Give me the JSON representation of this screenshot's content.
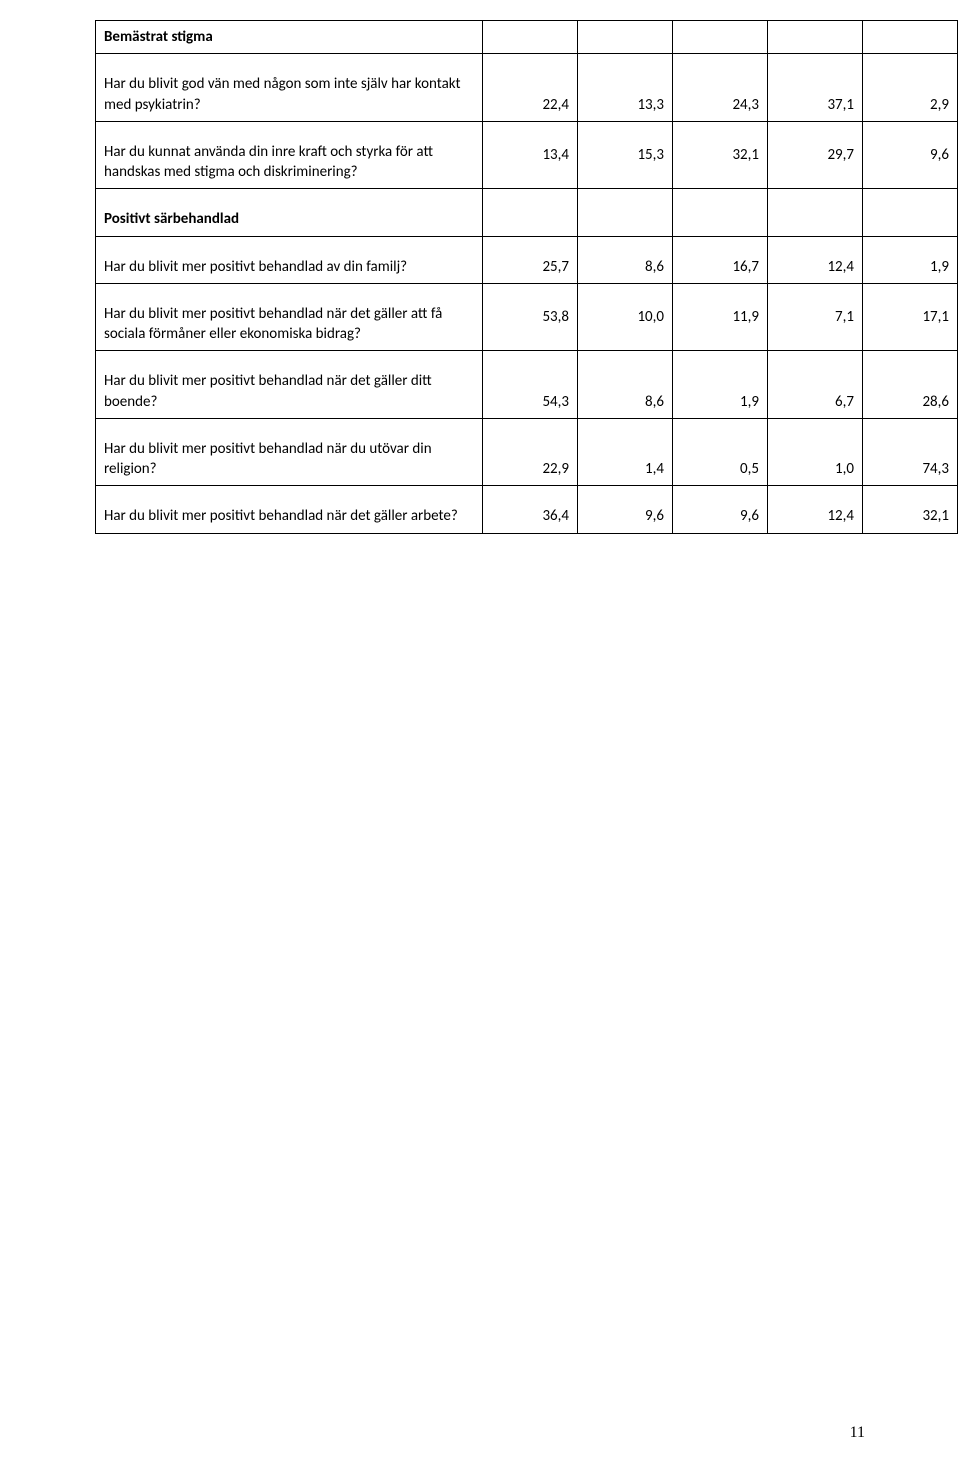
{
  "section1": {
    "title": "Bemästrat stigma",
    "rows": [
      {
        "label": "Har du blivit god vän med någon som inte själv har kontakt med psykiatrin?",
        "v": [
          "22,4",
          "13,3",
          "24,3",
          "37,1",
          "2,9"
        ]
      },
      {
        "label": "Har du kunnat använda din inre kraft och styrka för att handskas med stigma och diskriminering?",
        "v": [
          "13,4",
          "15,3",
          "32,1",
          "29,7",
          "9,6"
        ]
      }
    ]
  },
  "section2": {
    "title": "Positivt särbehandlad",
    "rows": [
      {
        "label": "Har du blivit mer positivt behandlad av din familj?",
        "v": [
          "25,7",
          "8,6",
          "16,7",
          "12,4",
          "1,9"
        ]
      },
      {
        "label": "Har du blivit mer positivt behandlad när det gäller att få sociala förmåner eller ekonomiska bidrag?",
        "v": [
          "53,8",
          "10,0",
          "11,9",
          "7,1",
          "17,1"
        ]
      },
      {
        "label": "Har du blivit mer positivt behandlad när det gäller ditt boende?",
        "v": [
          "54,3",
          "8,6",
          "1,9",
          "6,7",
          "28,6"
        ]
      },
      {
        "label": "Har du blivit mer positivt behandlad när du utövar din religion?",
        "v": [
          "22,9",
          "1,4",
          "0,5",
          "1,0",
          "74,3"
        ]
      },
      {
        "label": "Har du blivit mer positivt behandlad när det gäller arbete?",
        "v": [
          "36,4",
          "9,6",
          "9,6",
          "12,4",
          "32,1"
        ]
      }
    ]
  },
  "page_number": "11"
}
